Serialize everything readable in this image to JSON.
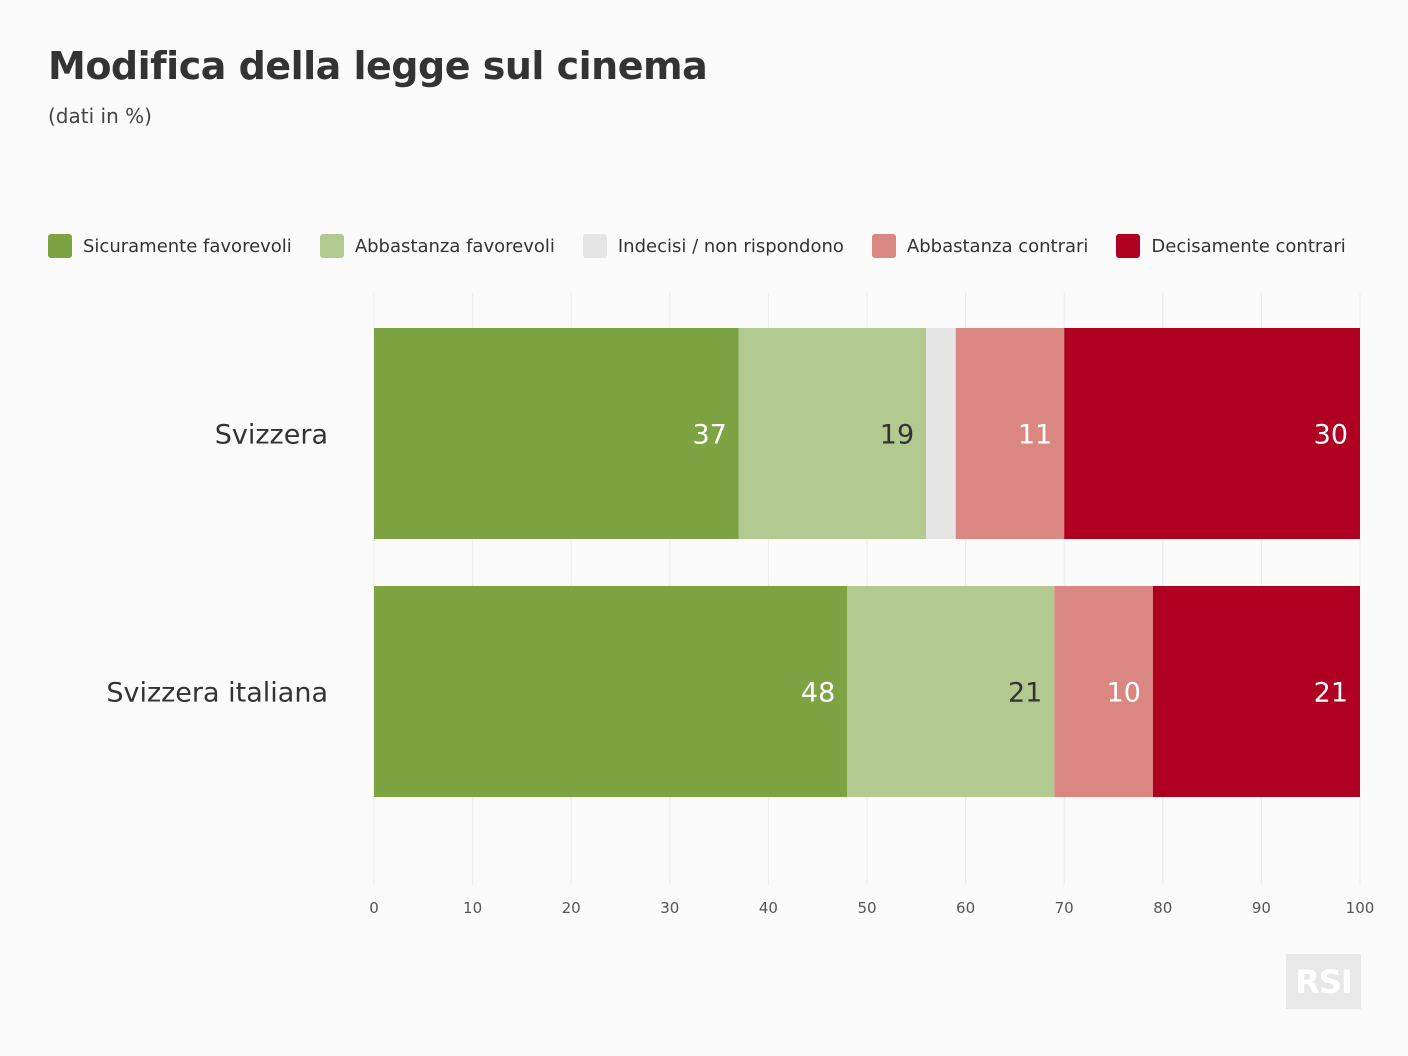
{
  "title": "Modifica della legge sul cinema",
  "subtitle": "(dati in %)",
  "logo_text": "RSI",
  "legend": [
    {
      "label": "Sicuramente favorevoli",
      "color": "#7ea343"
    },
    {
      "label": "Abbastanza favorevoli",
      "color": "#b2c990"
    },
    {
      "label": "Indecisi / non rispondono",
      "color": "#e5e5e5"
    },
    {
      "label": "Abbastanza contrari",
      "color": "#da8781"
    },
    {
      "label": "Decisamente contrari",
      "color": "#b00021"
    }
  ],
  "chart_data": {
    "type": "bar",
    "orientation": "horizontal",
    "stacked": true,
    "title": "Modifica della legge sul cinema",
    "subtitle": "(dati in %)",
    "categories": [
      "Svizzera",
      "Svizzera italiana"
    ],
    "series": [
      {
        "name": "Sicuramente favorevoli",
        "color": "#7ea343",
        "values": [
          37,
          48
        ],
        "labels": [
          "37",
          "48"
        ],
        "label_color": "#ffffff"
      },
      {
        "name": "Abbastanza favorevoli",
        "color": "#b2c990",
        "values": [
          19,
          21
        ],
        "labels": [
          "19",
          "21"
        ],
        "label_color": "#333333"
      },
      {
        "name": "Indecisi / non rispondono",
        "color": "#e5e5e5",
        "values": [
          3,
          0
        ],
        "labels": [
          "",
          ""
        ],
        "label_color": "#333333"
      },
      {
        "name": "Abbastanza contrari",
        "color": "#da8781",
        "values": [
          11,
          10
        ],
        "labels": [
          "11",
          "10"
        ],
        "label_color": "#ffffff"
      },
      {
        "name": "Decisamente contrari",
        "color": "#b00021",
        "values": [
          30,
          21
        ],
        "labels": [
          "30",
          "21"
        ],
        "label_color": "#ffffff"
      }
    ],
    "xlim": [
      0,
      100
    ],
    "xticks": [
      0,
      10,
      20,
      30,
      40,
      50,
      60,
      70,
      80,
      90,
      100
    ],
    "grid": "vertical",
    "legend_position": "top"
  }
}
